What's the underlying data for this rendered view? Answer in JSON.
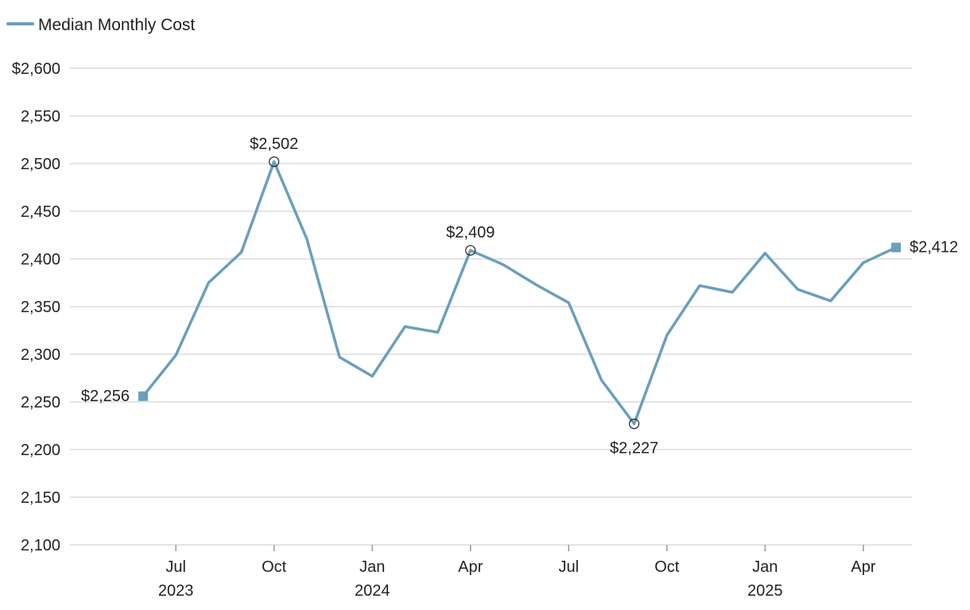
{
  "chart_data": {
    "type": "line",
    "legend": {
      "position": "top-left",
      "entries": [
        {
          "label": "Median Monthly Cost",
          "color": "#6a9fbd"
        }
      ]
    },
    "xlabel": "",
    "ylabel": "",
    "ylim": [
      2100,
      2600
    ],
    "y_ticks": [
      2100,
      2150,
      2200,
      2250,
      2300,
      2350,
      2400,
      2450,
      2500,
      2550,
      2600
    ],
    "y_tick_labels": [
      "2,100",
      "2,150",
      "2,200",
      "2,250",
      "2,300",
      "2,350",
      "2,400",
      "2,450",
      "2,500",
      "2,550",
      "$2,600"
    ],
    "x_ticks": [
      {
        "month": "2023-07",
        "label": "Jul",
        "year": "2023"
      },
      {
        "month": "2023-10",
        "label": "Oct",
        "year": ""
      },
      {
        "month": "2024-01",
        "label": "Jan",
        "year": "2024"
      },
      {
        "month": "2024-04",
        "label": "Apr",
        "year": ""
      },
      {
        "month": "2024-07",
        "label": "Jul",
        "year": ""
      },
      {
        "month": "2024-10",
        "label": "Oct",
        "year": ""
      },
      {
        "month": "2025-01",
        "label": "Jan",
        "year": "2025"
      },
      {
        "month": "2025-04",
        "label": "Apr",
        "year": ""
      }
    ],
    "grid": true,
    "series": [
      {
        "name": "Median Monthly Cost",
        "color": "#6a9fbd",
        "x": [
          "2023-06",
          "2023-07",
          "2023-08",
          "2023-09",
          "2023-10",
          "2023-11",
          "2023-12",
          "2024-01",
          "2024-02",
          "2024-03",
          "2024-04",
          "2024-05",
          "2024-06",
          "2024-07",
          "2024-08",
          "2024-09",
          "2024-10",
          "2024-11",
          "2024-12",
          "2025-01",
          "2025-02",
          "2025-03",
          "2025-04",
          "2025-05"
        ],
        "values": [
          2256,
          2299,
          2375,
          2407,
          2502,
          2421,
          2297,
          2277,
          2329,
          2323,
          2409,
          2394,
          2373,
          2354,
          2273,
          2227,
          2320,
          2372,
          2365,
          2406,
          2368,
          2356,
          2396,
          2412
        ]
      }
    ],
    "annotations": [
      {
        "x": "2023-06",
        "value": 2256,
        "label": "$2,256",
        "marker": "square",
        "placement": "left"
      },
      {
        "x": "2023-10",
        "value": 2502,
        "label": "$2,502",
        "marker": "circle",
        "placement": "above"
      },
      {
        "x": "2024-04",
        "value": 2409,
        "label": "$2,409",
        "marker": "circle",
        "placement": "above"
      },
      {
        "x": "2024-09",
        "value": 2227,
        "label": "$2,227",
        "marker": "circle",
        "placement": "below"
      },
      {
        "x": "2025-05",
        "value": 2412,
        "label": "$2,412",
        "marker": "square",
        "placement": "right"
      }
    ]
  }
}
